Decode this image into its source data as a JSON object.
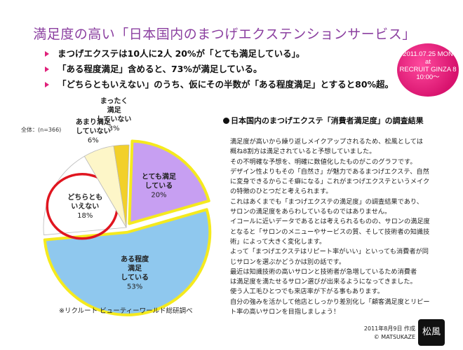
{
  "title": "満足度の高い「日本国内のまつげエクステンションサービス」",
  "date_badge": {
    "line1": "2011.07.25 MON",
    "line2": "at",
    "line3": "RECRUIT GINZA 8",
    "line4": "10:00〜",
    "color": "#e0217a"
  },
  "bullets": [
    "まつげエクステは10人に2人 20%が「とても満足している」。",
    "「ある程度満足」含めると、73%が満足している。",
    "「どちらともいえない」のうち、仮にその半数が「ある程度満足」とすると80%超。"
  ],
  "chart_data": {
    "type": "pie",
    "note": "全体：(n=366)",
    "slices": [
      {
        "label": [
          "とても満足",
          "している"
        ],
        "value": 20,
        "value_text": "20%",
        "color": "#c79ff2",
        "highlight": true
      },
      {
        "label": [
          "ある程度",
          "満足",
          "している"
        ],
        "value": 53,
        "value_text": "53%",
        "color": "#8fc8ee",
        "highlight": true
      },
      {
        "label": [
          "どちらとも",
          "いえない"
        ],
        "value": 18,
        "value_text": "18%",
        "color": "#ffffff",
        "highlight": false,
        "circled": true
      },
      {
        "label": [
          "あまり満足",
          "していない"
        ],
        "value": 6,
        "value_text": "6%",
        "color": "#fdf6c8",
        "highlight": false
      },
      {
        "label": [
          "まったく",
          "満足",
          "していない"
        ],
        "value": 3,
        "value_text": "3%",
        "color": "#f2d02a",
        "highlight": false
      }
    ],
    "highlight_color": "#f5ea1e",
    "circle_color": "#e0151f"
  },
  "source": "※リクルート ビューティーワールド総研調べ",
  "article": {
    "title": "日本国内のまつげエクステ「消費者満足度」の調査結果",
    "paragraphs": [
      "満足度が高いから繰り返しメイクアップされるため、松風としては",
      "概ね8割方は満足されていると予想していました。",
      "その不明確な予想を、明確に数値化したものがこのグラフです。",
      "デザイン性よりもその「自然さ」が魅力であるまつげエクステ、自然",
      "に変身できるからこそ癖になる」これがまつげエクステというメイク",
      "の特徴のひとつだと考えられます。",
      "これはあくまでも「まつげエクステの満足度」の調査結果であり、",
      "サロンの満足度をあらわしているものではありません。",
      "イコールに近いデータであるとは考えられるものの、サロンの満足度",
      "となると「サロンのメニューやサービスの質、そして技術者の知識技",
      "術」によって大きく変化します。",
      "よって「まつげエクステはリピート率がいい」といっても消費者が同",
      "じサロンを選ぶかどうかは別の話です。",
      "最近は知識技術の高いサロンと技術者が急増しているため消費者",
      "は満足度を満たせるサロン選びが出来るようになってきました。",
      "使う人工毛ひとつでも来店率が下がる事もあります。",
      "自分の強みを活かして他店としっかり差別化し「顧客満足度とリピー",
      "ト率の高いサロンを目指しましょう！"
    ]
  },
  "footer": {
    "date": "2011年8月9日 作成",
    "copyright": "© MATSUKAZE"
  },
  "logo": "松風"
}
